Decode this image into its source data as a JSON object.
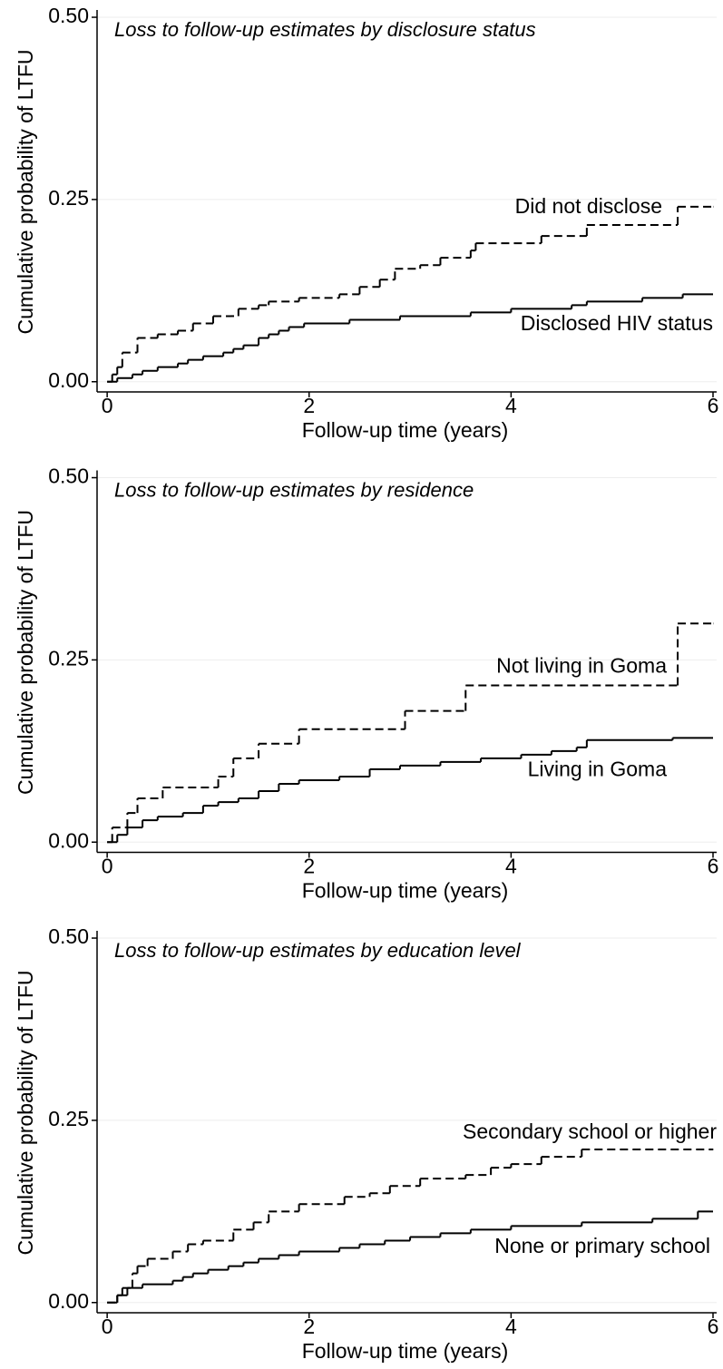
{
  "chart_data": [
    {
      "type": "line",
      "step": "post",
      "title": "Loss to follow-up estimates by disclosure status",
      "x_label": "Follow-up time (years)",
      "y_label": "Cumulative probability of LTFU",
      "xlim": [
        -0.1,
        6
      ],
      "ylim": [
        -0.014,
        0.51
      ],
      "xticks": [
        0,
        2,
        4,
        6
      ],
      "yticks": [
        {
          "value": 0,
          "label": "0.00"
        },
        {
          "value": 0.25,
          "label": "0.25"
        },
        {
          "value": 0.5,
          "label": "0.50"
        }
      ],
      "grid": true,
      "series": [
        {
          "name": "Did not disclose",
          "color": "#000000",
          "line_style": "dashed",
          "x": [
            0,
            0.05,
            0.1,
            0.15,
            0.3,
            0.5,
            0.7,
            0.85,
            1.05,
            1.3,
            1.5,
            1.6,
            1.9,
            2.3,
            2.5,
            2.7,
            2.85,
            3.1,
            3.3,
            3.6,
            3.65,
            4.3,
            4.75,
            5.65,
            6
          ],
          "values": [
            0,
            0.01,
            0.02,
            0.04,
            0.06,
            0.065,
            0.07,
            0.08,
            0.09,
            0.1,
            0.105,
            0.11,
            0.115,
            0.12,
            0.13,
            0.14,
            0.155,
            0.16,
            0.17,
            0.18,
            0.19,
            0.2,
            0.215,
            0.24,
            0.24
          ]
        },
        {
          "name": "Disclosed HIV status",
          "color": "#000000",
          "line_style": "solid",
          "x": [
            0,
            0.1,
            0.25,
            0.35,
            0.5,
            0.7,
            0.8,
            0.95,
            1.15,
            1.25,
            1.35,
            1.5,
            1.6,
            1.7,
            1.8,
            1.95,
            2.4,
            2.9,
            3.6,
            4.0,
            4.6,
            4.75,
            5.3,
            5.7,
            6
          ],
          "values": [
            0,
            0.005,
            0.01,
            0.015,
            0.02,
            0.025,
            0.03,
            0.035,
            0.04,
            0.045,
            0.05,
            0.06,
            0.065,
            0.07,
            0.075,
            0.08,
            0.085,
            0.09,
            0.095,
            0.1,
            0.105,
            0.11,
            0.115,
            0.12,
            0.12
          ]
        }
      ]
    },
    {
      "type": "line",
      "step": "post",
      "title": "Loss to follow-up estimates by residence",
      "x_label": "Follow-up time (years)",
      "y_label": "Cumulative probability of LTFU",
      "xlim": [
        -0.1,
        6
      ],
      "ylim": [
        -0.014,
        0.51
      ],
      "xticks": [
        0,
        2,
        4,
        6
      ],
      "yticks": [
        {
          "value": 0,
          "label": "0.00"
        },
        {
          "value": 0.25,
          "label": "0.25"
        },
        {
          "value": 0.5,
          "label": "0.50"
        }
      ],
      "grid": true,
      "series": [
        {
          "name": "Not living in Goma",
          "color": "#000000",
          "line_style": "dashed",
          "x": [
            0,
            0.05,
            0.2,
            0.3,
            0.55,
            1.1,
            1.25,
            1.5,
            1.9,
            2.95,
            3.55,
            5.65,
            6
          ],
          "values": [
            0,
            0.02,
            0.04,
            0.06,
            0.075,
            0.09,
            0.115,
            0.135,
            0.155,
            0.18,
            0.215,
            0.3,
            0.3
          ]
        },
        {
          "name": "Living in Goma",
          "color": "#000000",
          "line_style": "solid",
          "x": [
            0,
            0.1,
            0.2,
            0.35,
            0.5,
            0.75,
            0.95,
            1.1,
            1.3,
            1.5,
            1.7,
            1.9,
            2.3,
            2.6,
            2.9,
            3.3,
            3.7,
            4.1,
            4.4,
            4.65,
            4.75,
            5.6,
            6
          ],
          "values": [
            0,
            0.01,
            0.02,
            0.03,
            0.035,
            0.04,
            0.05,
            0.055,
            0.06,
            0.07,
            0.08,
            0.085,
            0.09,
            0.1,
            0.105,
            0.11,
            0.115,
            0.12,
            0.125,
            0.13,
            0.14,
            0.143,
            0.143
          ]
        }
      ]
    },
    {
      "type": "line",
      "step": "post",
      "title": "Loss to follow-up estimates by education level",
      "x_label": "Follow-up time (years)",
      "y_label": "Cumulative probability of LTFU",
      "xlim": [
        -0.1,
        6
      ],
      "ylim": [
        -0.014,
        0.51
      ],
      "xticks": [
        0,
        2,
        4,
        6
      ],
      "yticks": [
        {
          "value": 0,
          "label": "0.00"
        },
        {
          "value": 0.25,
          "label": "0.25"
        },
        {
          "value": 0.5,
          "label": "0.50"
        }
      ],
      "grid": true,
      "series": [
        {
          "name": "Secondary school or higher",
          "color": "#000000",
          "line_style": "dashed",
          "x": [
            0,
            0.1,
            0.15,
            0.25,
            0.3,
            0.4,
            0.65,
            0.8,
            0.95,
            1.25,
            1.45,
            1.6,
            1.9,
            2.35,
            2.6,
            2.8,
            3.1,
            3.55,
            3.8,
            4.0,
            4.3,
            4.7,
            6
          ],
          "values": [
            0,
            0.01,
            0.02,
            0.04,
            0.05,
            0.06,
            0.07,
            0.08,
            0.085,
            0.1,
            0.11,
            0.125,
            0.135,
            0.145,
            0.15,
            0.16,
            0.17,
            0.175,
            0.185,
            0.19,
            0.2,
            0.21,
            0.21
          ]
        },
        {
          "name": "None or primary school",
          "color": "#000000",
          "line_style": "solid",
          "x": [
            0,
            0.1,
            0.2,
            0.35,
            0.65,
            0.75,
            0.85,
            1.0,
            1.2,
            1.35,
            1.5,
            1.7,
            1.9,
            2.3,
            2.5,
            2.75,
            3.0,
            3.3,
            3.6,
            4.0,
            4.7,
            5.4,
            5.85,
            6
          ],
          "values": [
            0,
            0.01,
            0.02,
            0.025,
            0.03,
            0.035,
            0.04,
            0.045,
            0.05,
            0.055,
            0.06,
            0.065,
            0.07,
            0.075,
            0.08,
            0.085,
            0.09,
            0.095,
            0.1,
            0.105,
            0.11,
            0.115,
            0.125,
            0.125
          ]
        }
      ]
    }
  ]
}
